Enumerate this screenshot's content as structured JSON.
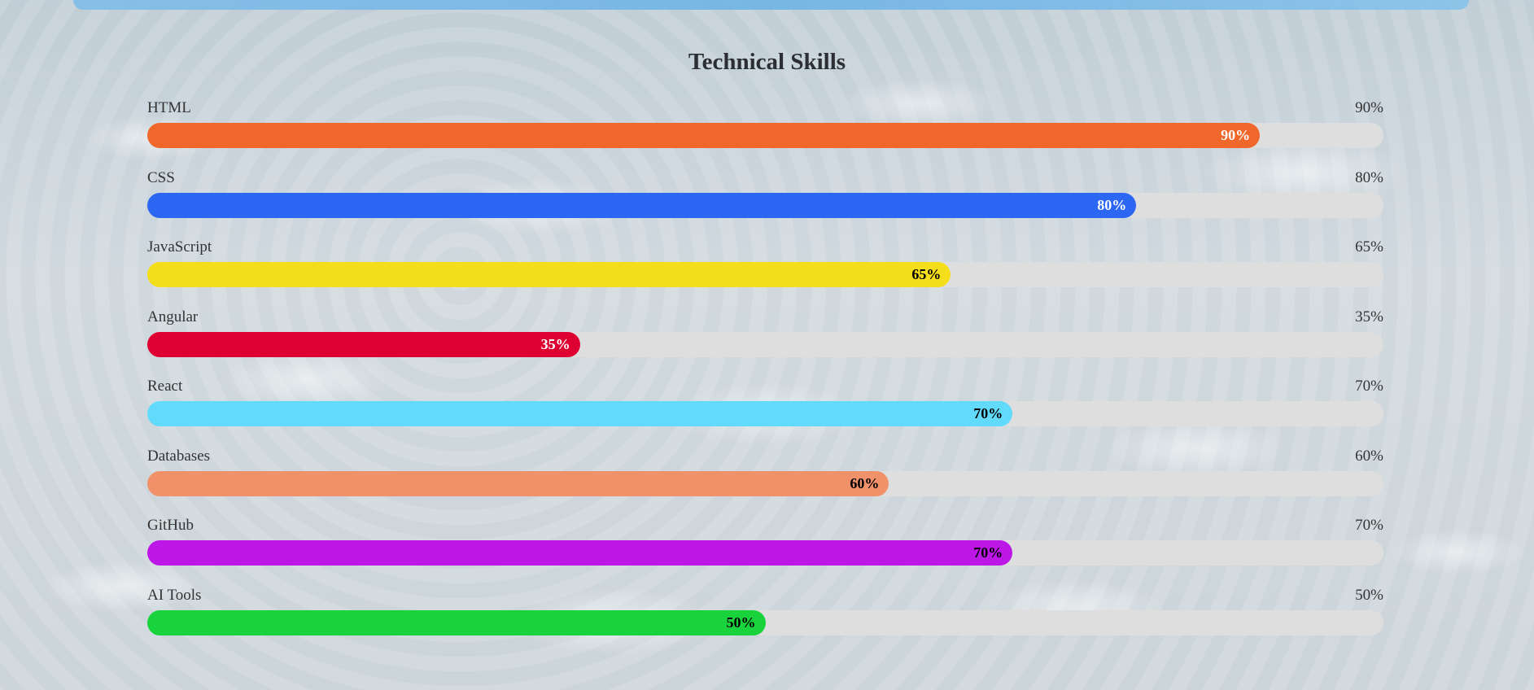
{
  "page": {
    "title": "Technical Skills"
  },
  "skills": [
    {
      "name": "HTML",
      "percent_label": "90%",
      "value": 90,
      "color": "#f0672b",
      "label_color": "#ffffff"
    },
    {
      "name": "CSS",
      "percent_label": "80%",
      "value": 80,
      "color": "#2b67f2",
      "label_color": "#ffffff"
    },
    {
      "name": "JavaScript",
      "percent_label": "65%",
      "value": 65,
      "color": "#f4dd1a",
      "label_color": "#000000"
    },
    {
      "name": "Angular",
      "percent_label": "35%",
      "value": 35,
      "color": "#dd0031",
      "label_color": "#ffffff"
    },
    {
      "name": "React",
      "percent_label": "70%",
      "value": 70,
      "color": "#61dafb",
      "label_color": "#000000"
    },
    {
      "name": "Databases",
      "percent_label": "60%",
      "value": 60,
      "color": "#f0916a",
      "label_color": "#000000"
    },
    {
      "name": "GitHub",
      "percent_label": "70%",
      "value": 70,
      "color": "#bd17e8",
      "label_color": "#000000"
    },
    {
      "name": "AI Tools",
      "percent_label": "50%",
      "value": 50,
      "color": "#19d33c",
      "label_color": "#000000"
    }
  ]
}
